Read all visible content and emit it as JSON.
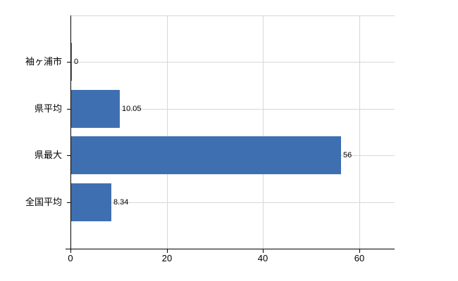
{
  "chart_data": {
    "type": "bar",
    "orientation": "horizontal",
    "title": "",
    "xlabel": "",
    "ylabel": "",
    "categories": [
      "袖ヶ浦市",
      "県平均",
      "県最大",
      "全国平均"
    ],
    "values": [
      0,
      10.05,
      56,
      8.34
    ],
    "value_labels": [
      "0",
      "10.05",
      "56",
      "8.34"
    ],
    "x_ticks": [
      "0",
      "20",
      "40",
      "60"
    ],
    "x_tick_values": [
      0,
      20,
      40,
      60
    ],
    "xlim": [
      0,
      67.3
    ],
    "grid": true,
    "legend": false,
    "colors": {
      "bar": "#3e6fb1",
      "grid": "#d7d7d7",
      "axis": "#000000",
      "text": "#000000",
      "background": "#ffffff"
    }
  }
}
